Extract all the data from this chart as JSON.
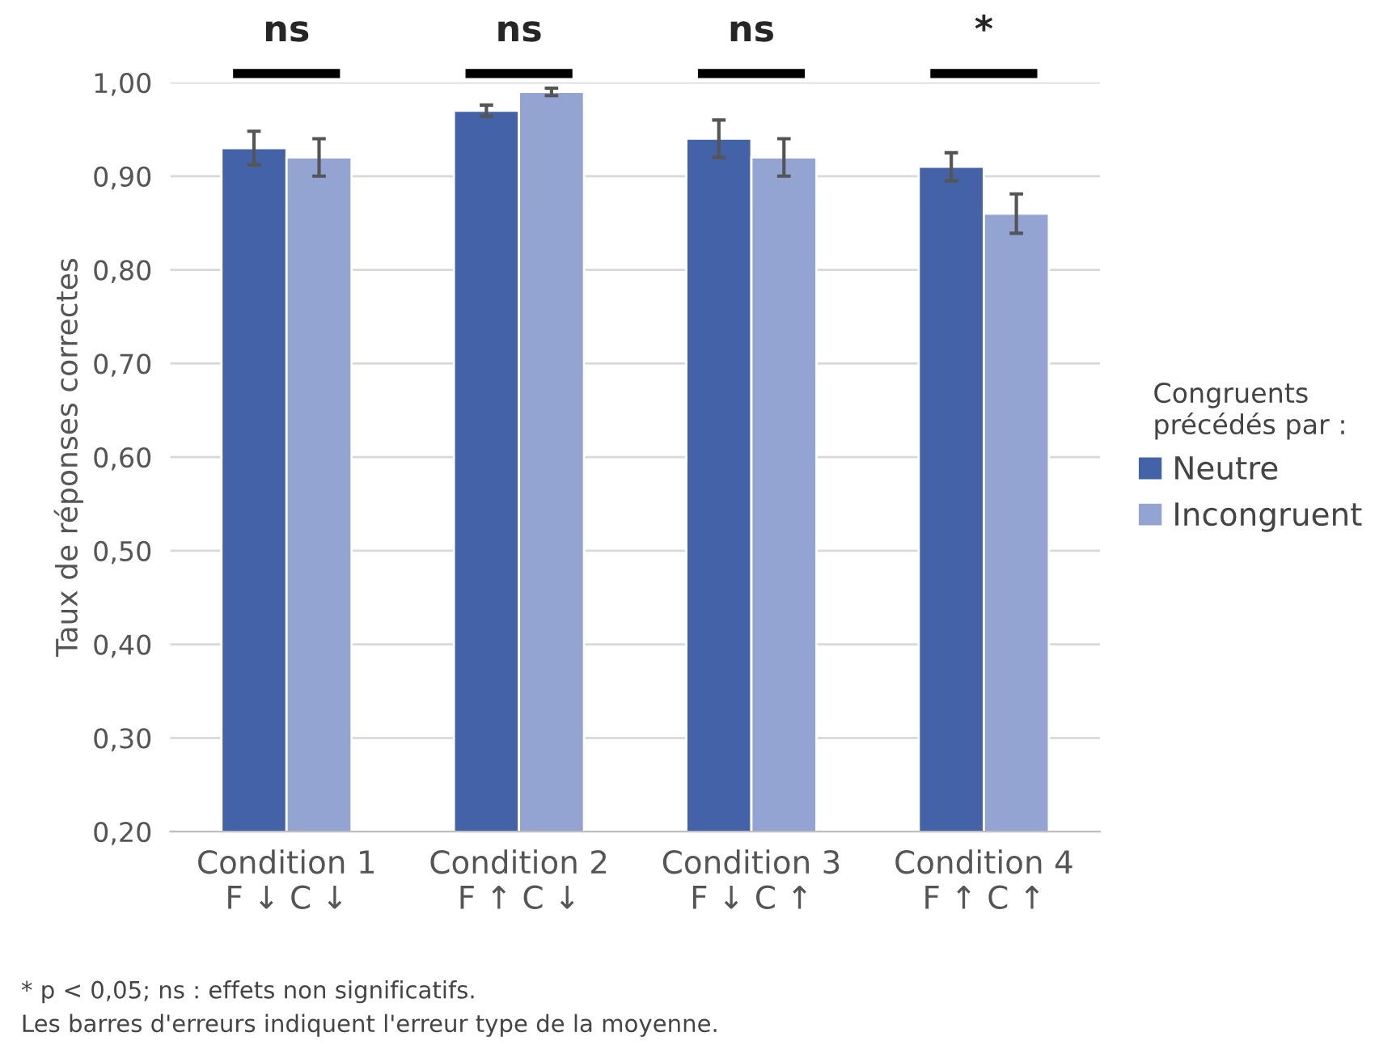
{
  "chart_data": {
    "type": "bar",
    "ylabel": "Taux de réponses correctes",
    "legend_title": "Congruents\nprécédés par :",
    "categories": [
      "Condition 1\nF ↓ C ↓",
      "Condition 2\nF ↑ C ↓",
      "Condition 3\nF ↓ C ↑",
      "Condition 4\nF ↑ C ↑"
    ],
    "series": [
      {
        "name": "Neutre",
        "color": "#4462a8",
        "values": [
          0.93,
          0.97,
          0.94,
          0.91
        ],
        "errors": [
          0.018,
          0.006,
          0.02,
          0.015
        ]
      },
      {
        "name": "Incongruent",
        "color": "#93a3d2",
        "values": [
          0.92,
          0.99,
          0.92,
          0.86
        ],
        "errors": [
          0.02,
          0.004,
          0.02,
          0.021
        ]
      }
    ],
    "ylim": [
      0.2,
      1.0
    ],
    "yticks": [
      {
        "value": 0.2,
        "label": "0,20"
      },
      {
        "value": 0.3,
        "label": "0,30"
      },
      {
        "value": 0.4,
        "label": "0,40"
      },
      {
        "value": 0.5,
        "label": "0,50"
      },
      {
        "value": 0.6,
        "label": "0,60"
      },
      {
        "value": 0.7,
        "label": "0,70"
      },
      {
        "value": 0.8,
        "label": "0,80"
      },
      {
        "value": 0.9,
        "label": "0,90"
      },
      {
        "value": 1.0,
        "label": "1,00"
      }
    ],
    "grid": "y",
    "legend": "right",
    "annotations": [
      "ns",
      "ns",
      "ns",
      "*",
      "* p < 0,05; ns : effets non significatifs.\nLes barres d'erreurs indiquent l'erreur type de la moyenne."
    ]
  }
}
